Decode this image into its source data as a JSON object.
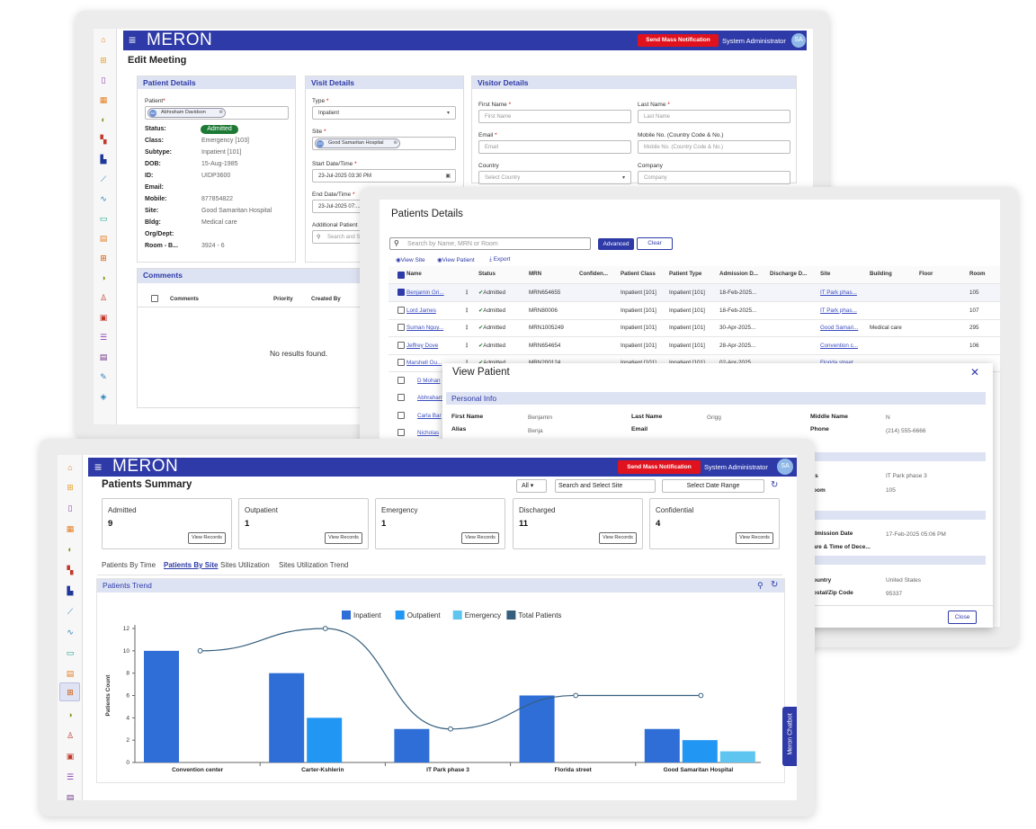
{
  "app": {
    "logo": "MERON",
    "notification_button": "Send Mass Notification",
    "user": "System Administrator",
    "avatar": "SA"
  },
  "edit_meeting": {
    "page_title": "Edit Meeting",
    "patient_details": {
      "header": "Patient Details",
      "patient_label": "Patient",
      "patient_chip": "Abhraham Davidson",
      "patient_chip_initials": "AD",
      "fields": [
        {
          "k": "Status:",
          "v": "Admitted"
        },
        {
          "k": "Class:",
          "v": "Emergency [103]"
        },
        {
          "k": "Subtype:",
          "v": "Inpatient [101]"
        },
        {
          "k": "DOB:",
          "v": "15-Aug-1985"
        },
        {
          "k": "ID:",
          "v": "UIDP3600"
        },
        {
          "k": "Email:",
          "v": ""
        },
        {
          "k": "Mobile:",
          "v": "877854822"
        },
        {
          "k": "Site:",
          "v": "Good Samaritan Hospital"
        },
        {
          "k": "Bldg:",
          "v": "Medical care"
        },
        {
          "k": "Org/Dept:",
          "v": ""
        },
        {
          "k": "Room - B...",
          "v": "3924 - 6"
        }
      ]
    },
    "visit_details": {
      "header": "Visit Details",
      "type_label": "Type",
      "type_value": "Inpatient",
      "site_label": "Site",
      "site_chip": "Good Samaritan Hospital",
      "site_chip_initials": "GS",
      "start_label": "Start Date/Time",
      "start_value": "23-Jul-2025 03:30 PM",
      "end_label": "End Date/Time",
      "end_value": "23-Jul-2025 07:...",
      "additional_label": "Additional Patient",
      "search_placeholder": "Search and S..."
    },
    "visitor_details": {
      "header": "Visitor Details",
      "first_name_label": "First Name",
      "first_name_ph": "First Name",
      "last_name_label": "Last Name",
      "last_name_ph": "Last Name",
      "email_label": "Email",
      "email_ph": "Email",
      "mobile_label": "Mobile No. (Country Code & No.)",
      "mobile_ph": "Mobile No. (Country Code & No.)",
      "country_label": "Country",
      "country_ph": "Select Country",
      "company_label": "Company",
      "company_ph": "Company"
    },
    "comments": {
      "header": "Comments",
      "col_comments": "Comments",
      "col_priority": "Priority",
      "col_created_by": "Created By",
      "empty": "No results found."
    }
  },
  "patients_details": {
    "title": "Patients Details",
    "search_placeholder": "Search by Name, MRN or Room",
    "advanced": "Advanced",
    "clear": "Clear",
    "actions": [
      "View Site",
      "View Patient",
      "Export"
    ],
    "columns": [
      "Name",
      "Status",
      "MRN",
      "Confiden...",
      "Patient Class",
      "Patient Type",
      "Admission D...",
      "Discharge D...",
      "Site",
      "Building",
      "Floor",
      "Room"
    ],
    "rows": [
      {
        "name": "Benjamin Gri...",
        "status": "Admitted",
        "mrn": "MRN654655",
        "cls": "Inpatient [101]",
        "type": "Inpatient [101]",
        "adm": "18-Feb-2025...",
        "site": "IT Park phas...",
        "bldg": "",
        "room": "105",
        "checked": true
      },
      {
        "name": "Lord James",
        "status": "Admitted",
        "mrn": "MRN80006",
        "cls": "Inpatient [101]",
        "type": "Inpatient [101]",
        "adm": "18-Feb-2025...",
        "site": "IT Park phas...",
        "bldg": "",
        "room": "107",
        "checked": false
      },
      {
        "name": "Suman Nguy...",
        "status": "Admitted",
        "mrn": "MRN1005249",
        "cls": "Inpatient [101]",
        "type": "Inpatient [101]",
        "adm": "30-Apr-2025...",
        "site": "Good Samari...",
        "bldg": "Medical care",
        "room": "295",
        "checked": false
      },
      {
        "name": "Jeffrey Dove",
        "status": "Admitted",
        "mrn": "MRN654654",
        "cls": "Inpatient [101]",
        "type": "Inpatient [101]",
        "adm": "28-Apr-2025...",
        "site": "Convention c...",
        "bldg": "",
        "room": "106",
        "checked": false
      },
      {
        "name": "Marshell Ou...",
        "status": "Admitted",
        "mrn": "MRN200124",
        "cls": "Inpatient [101]",
        "type": "Inpatient [101]",
        "adm": "02-Apr-2025...",
        "site": "Florida street",
        "bldg": "",
        "room": "",
        "checked": false
      }
    ],
    "more_names": [
      "D Mohan",
      "Abhraham",
      "Carla Bar",
      "Nicholas"
    ]
  },
  "view_patient": {
    "title": "View Patient",
    "section": "Personal Info",
    "first_name_k": "First Name",
    "first_name_v": "Benjamin",
    "last_name_k": "Last Name",
    "last_name_v": "Grigg",
    "middle_name_k": "Middle Name",
    "middle_name_v": "N",
    "alias_k": "Alias",
    "alias_v": "Benja",
    "email_k": "Email",
    "phone_k": "Phone",
    "phone_v": "(214) 555-6666",
    "site_k": "ts",
    "site_v": "IT Park phase 3",
    "room_k": "oom",
    "room_v": "105",
    "adm_k": "dmission Date",
    "adm_v": "17-Feb-2025 05:06 PM",
    "dec_k": "are & Time of Dece...",
    "country_k": "ountry",
    "country_v": "United States",
    "zip_k": "ostal/Zip Code",
    "zip_v": "95337",
    "close": "Close"
  },
  "patients_summary": {
    "title": "Patients Summary",
    "filter_all": "All",
    "site_search": "Search and Select Site",
    "date_range": "Select Date Range",
    "cards": [
      {
        "title": "Admitted",
        "value": "9",
        "btn": "View Records"
      },
      {
        "title": "Outpatient",
        "value": "1",
        "btn": "View Records"
      },
      {
        "title": "Emergency",
        "value": "1",
        "btn": "View Records"
      },
      {
        "title": "Discharged",
        "value": "11",
        "btn": "View Records"
      },
      {
        "title": "Confidential",
        "value": "4",
        "btn": "View Records"
      }
    ],
    "tabs": [
      "Patients By Time",
      "Patients By Site",
      "Sites Utilization",
      "Sites Utilization Trend"
    ],
    "active_tab": 1,
    "trend_header": "Patients Trend",
    "chatbot": "Meron Chatbot"
  },
  "chart_data": {
    "type": "bar",
    "categories": [
      "Convention center",
      "Carter-Kshlerin",
      "IT Park phase 3",
      "Florida street",
      "Good Samaritan Hospital"
    ],
    "series": [
      {
        "name": "Inpatient",
        "values": [
          10,
          8,
          3,
          6,
          3
        ],
        "color": "#2f6ed6"
      },
      {
        "name": "Outpatient",
        "values": [
          0,
          4,
          0,
          0,
          2
        ],
        "color": "#2196f3"
      },
      {
        "name": "Emergency",
        "values": [
          0,
          0,
          0,
          0,
          1
        ],
        "color": "#5ec4f0"
      },
      {
        "name": "Total Patients",
        "type": "line",
        "values": [
          10,
          12,
          3,
          6,
          6
        ],
        "color": "#355f7d"
      }
    ],
    "ylabel": "Patients Count",
    "xlabel": "",
    "ylim": [
      0,
      12
    ],
    "yticks": [
      0,
      2,
      4,
      6,
      8,
      10,
      12
    ],
    "legend": "top"
  },
  "colors": {
    "brand": "#2e3aa7",
    "alert": "#e0121e",
    "success": "#1d7a35"
  }
}
